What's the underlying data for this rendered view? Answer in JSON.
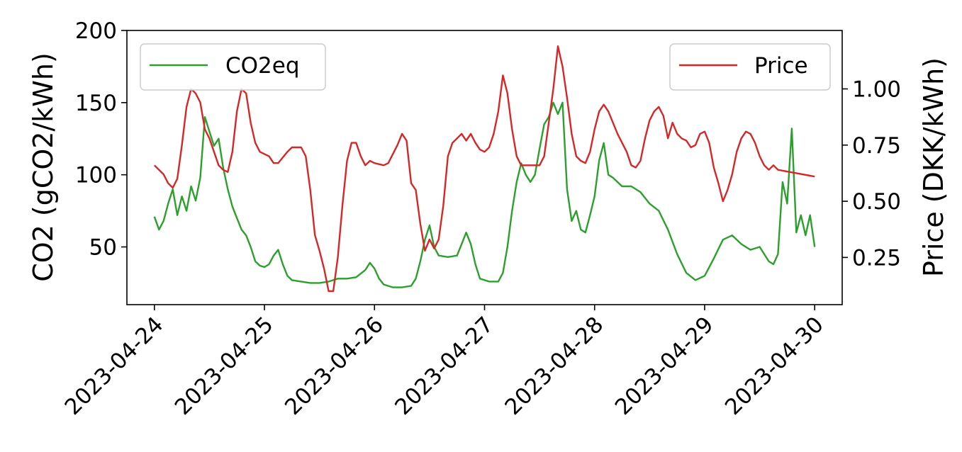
{
  "chart_data": {
    "type": "line",
    "title": "",
    "xlabel": "",
    "y_left_label": "CO2 (gCO2/kWh)",
    "y_right_label": "Price (DKK/kWh)",
    "x_ticks": [
      "2023-04-24",
      "2023-04-25",
      "2023-04-26",
      "2023-04-27",
      "2023-04-28",
      "2023-04-29",
      "2023-04-30"
    ],
    "x_range": [
      "2023-04-23T18:00",
      "2023-04-30T06:00"
    ],
    "y_left_ticks": [
      50,
      100,
      150,
      200
    ],
    "y_left_range": [
      10,
      200
    ],
    "y_right_ticks": [
      0.25,
      0.5,
      0.75,
      1.0
    ],
    "y_right_range": [
      0.04,
      1.26
    ],
    "grid": false,
    "legends": [
      {
        "position": "top-left",
        "entries": [
          {
            "label": "CO2eq",
            "color": "#2ca02c"
          }
        ]
      },
      {
        "position": "top-right",
        "entries": [
          {
            "label": "Price",
            "color": "#d62728"
          }
        ]
      }
    ],
    "series": [
      {
        "name": "CO2eq",
        "axis": "left",
        "color": "#2ca02c",
        "points": [
          [
            "2023-04-24T00:00",
            71
          ],
          [
            "2023-04-24T01:00",
            62
          ],
          [
            "2023-04-24T02:00",
            68
          ],
          [
            "2023-04-24T03:00",
            80
          ],
          [
            "2023-04-24T04:00",
            90
          ],
          [
            "2023-04-24T05:00",
            72
          ],
          [
            "2023-04-24T06:00",
            85
          ],
          [
            "2023-04-24T07:00",
            75
          ],
          [
            "2023-04-24T08:00",
            92
          ],
          [
            "2023-04-24T09:00",
            82
          ],
          [
            "2023-04-24T10:00",
            98
          ],
          [
            "2023-04-24T11:00",
            140
          ],
          [
            "2023-04-24T12:00",
            130
          ],
          [
            "2023-04-24T13:00",
            120
          ],
          [
            "2023-04-24T14:00",
            125
          ],
          [
            "2023-04-24T15:00",
            105
          ],
          [
            "2023-04-24T16:00",
            90
          ],
          [
            "2023-04-24T17:00",
            78
          ],
          [
            "2023-04-24T18:00",
            70
          ],
          [
            "2023-04-24T19:00",
            62
          ],
          [
            "2023-04-24T20:00",
            58
          ],
          [
            "2023-04-24T21:00",
            50
          ],
          [
            "2023-04-24T22:00",
            40
          ],
          [
            "2023-04-24T23:00",
            37
          ],
          [
            "2023-04-25T00:00",
            36
          ],
          [
            "2023-04-25T01:00",
            38
          ],
          [
            "2023-04-25T02:00",
            44
          ],
          [
            "2023-04-25T03:00",
            48
          ],
          [
            "2023-04-25T04:00",
            38
          ],
          [
            "2023-04-25T05:00",
            30
          ],
          [
            "2023-04-25T06:00",
            27
          ],
          [
            "2023-04-25T08:00",
            26
          ],
          [
            "2023-04-25T10:00",
            25
          ],
          [
            "2023-04-25T12:00",
            25
          ],
          [
            "2023-04-25T14:00",
            26
          ],
          [
            "2023-04-25T16:00",
            28
          ],
          [
            "2023-04-25T18:00",
            28
          ],
          [
            "2023-04-25T20:00",
            29
          ],
          [
            "2023-04-25T22:00",
            34
          ],
          [
            "2023-04-25T23:00",
            39
          ],
          [
            "2023-04-26T00:00",
            35
          ],
          [
            "2023-04-26T01:00",
            28
          ],
          [
            "2023-04-26T02:00",
            24
          ],
          [
            "2023-04-26T04:00",
            22
          ],
          [
            "2023-04-26T06:00",
            22
          ],
          [
            "2023-04-26T08:00",
            23
          ],
          [
            "2023-04-26T09:00",
            28
          ],
          [
            "2023-04-26T10:00",
            40
          ],
          [
            "2023-04-26T11:00",
            55
          ],
          [
            "2023-04-26T12:00",
            65
          ],
          [
            "2023-04-26T13:00",
            50
          ],
          [
            "2023-04-26T14:00",
            44
          ],
          [
            "2023-04-26T16:00",
            43
          ],
          [
            "2023-04-26T18:00",
            44
          ],
          [
            "2023-04-26T19:00",
            52
          ],
          [
            "2023-04-26T20:00",
            60
          ],
          [
            "2023-04-26T21:00",
            52
          ],
          [
            "2023-04-26T22:00",
            38
          ],
          [
            "2023-04-26T23:00",
            28
          ],
          [
            "2023-04-27T01:00",
            26
          ],
          [
            "2023-04-27T03:00",
            26
          ],
          [
            "2023-04-27T04:00",
            32
          ],
          [
            "2023-04-27T05:00",
            50
          ],
          [
            "2023-04-27T06:00",
            75
          ],
          [
            "2023-04-27T07:00",
            95
          ],
          [
            "2023-04-27T08:00",
            108
          ],
          [
            "2023-04-27T09:00",
            100
          ],
          [
            "2023-04-27T10:00",
            95
          ],
          [
            "2023-04-27T11:00",
            100
          ],
          [
            "2023-04-27T12:00",
            118
          ],
          [
            "2023-04-27T13:00",
            135
          ],
          [
            "2023-04-27T14:00",
            140
          ],
          [
            "2023-04-27T15:00",
            150
          ],
          [
            "2023-04-27T16:00",
            142
          ],
          [
            "2023-04-27T17:00",
            150
          ],
          [
            "2023-04-27T18:00",
            90
          ],
          [
            "2023-04-27T19:00",
            68
          ],
          [
            "2023-04-27T20:00",
            75
          ],
          [
            "2023-04-27T21:00",
            62
          ],
          [
            "2023-04-27T22:00",
            60
          ],
          [
            "2023-04-27T23:00",
            72
          ],
          [
            "2023-04-28T00:00",
            85
          ],
          [
            "2023-04-28T01:00",
            110
          ],
          [
            "2023-04-28T02:00",
            122
          ],
          [
            "2023-04-28T03:00",
            100
          ],
          [
            "2023-04-28T04:00",
            98
          ],
          [
            "2023-04-28T06:00",
            92
          ],
          [
            "2023-04-28T08:00",
            92
          ],
          [
            "2023-04-28T10:00",
            88
          ],
          [
            "2023-04-28T12:00",
            80
          ],
          [
            "2023-04-28T14:00",
            75
          ],
          [
            "2023-04-28T16:00",
            62
          ],
          [
            "2023-04-28T18:00",
            45
          ],
          [
            "2023-04-28T20:00",
            32
          ],
          [
            "2023-04-28T22:00",
            27
          ],
          [
            "2023-04-29T00:00",
            30
          ],
          [
            "2023-04-29T02:00",
            42
          ],
          [
            "2023-04-29T04:00",
            55
          ],
          [
            "2023-04-29T06:00",
            58
          ],
          [
            "2023-04-29T08:00",
            52
          ],
          [
            "2023-04-29T10:00",
            48
          ],
          [
            "2023-04-29T12:00",
            50
          ],
          [
            "2023-04-29T14:00",
            40
          ],
          [
            "2023-04-29T15:00",
            38
          ],
          [
            "2023-04-29T16:00",
            45
          ],
          [
            "2023-04-29T17:00",
            95
          ],
          [
            "2023-04-29T18:00",
            80
          ],
          [
            "2023-04-29T19:00",
            132
          ],
          [
            "2023-04-29T20:00",
            60
          ],
          [
            "2023-04-29T21:00",
            72
          ],
          [
            "2023-04-29T22:00",
            58
          ],
          [
            "2023-04-29T23:00",
            72
          ],
          [
            "2023-04-30T00:00",
            50
          ]
        ]
      },
      {
        "name": "Price",
        "axis": "right",
        "color": "#d62728",
        "points": [
          [
            "2023-04-24T00:00",
            0.66
          ],
          [
            "2023-04-24T02:00",
            0.62
          ],
          [
            "2023-04-24T03:00",
            0.58
          ],
          [
            "2023-04-24T04:00",
            0.56
          ],
          [
            "2023-04-24T05:00",
            0.6
          ],
          [
            "2023-04-24T06:00",
            0.75
          ],
          [
            "2023-04-24T07:00",
            0.92
          ],
          [
            "2023-04-24T08:00",
            1.0
          ],
          [
            "2023-04-24T09:00",
            0.98
          ],
          [
            "2023-04-24T10:00",
            0.94
          ],
          [
            "2023-04-24T11:00",
            0.82
          ],
          [
            "2023-04-24T12:00",
            0.78
          ],
          [
            "2023-04-24T13:00",
            0.72
          ],
          [
            "2023-04-24T14:00",
            0.66
          ],
          [
            "2023-04-24T15:00",
            0.64
          ],
          [
            "2023-04-24T16:00",
            0.63
          ],
          [
            "2023-04-24T17:00",
            0.72
          ],
          [
            "2023-04-24T18:00",
            0.9
          ],
          [
            "2023-04-24T19:00",
            1.0
          ],
          [
            "2023-04-24T20:00",
            0.98
          ],
          [
            "2023-04-24T21:00",
            0.85
          ],
          [
            "2023-04-24T22:00",
            0.76
          ],
          [
            "2023-04-24T23:00",
            0.72
          ],
          [
            "2023-04-25T01:00",
            0.7
          ],
          [
            "2023-04-25T02:00",
            0.67
          ],
          [
            "2023-04-25T03:00",
            0.67
          ],
          [
            "2023-04-25T05:00",
            0.72
          ],
          [
            "2023-04-25T06:00",
            0.74
          ],
          [
            "2023-04-25T08:00",
            0.74
          ],
          [
            "2023-04-25T09:00",
            0.7
          ],
          [
            "2023-04-25T10:00",
            0.55
          ],
          [
            "2023-04-25T11:00",
            0.35
          ],
          [
            "2023-04-25T12:00",
            0.28
          ],
          [
            "2023-04-25T13:00",
            0.2
          ],
          [
            "2023-04-25T14:00",
            0.1
          ],
          [
            "2023-04-25T15:00",
            0.1
          ],
          [
            "2023-04-25T16:00",
            0.25
          ],
          [
            "2023-04-25T17:00",
            0.48
          ],
          [
            "2023-04-25T18:00",
            0.68
          ],
          [
            "2023-04-25T19:00",
            0.76
          ],
          [
            "2023-04-25T20:00",
            0.76
          ],
          [
            "2023-04-25T21:00",
            0.7
          ],
          [
            "2023-04-25T22:00",
            0.66
          ],
          [
            "2023-04-25T23:00",
            0.68
          ],
          [
            "2023-04-26T00:00",
            0.67
          ],
          [
            "2023-04-26T02:00",
            0.66
          ],
          [
            "2023-04-26T03:00",
            0.67
          ],
          [
            "2023-04-26T05:00",
            0.75
          ],
          [
            "2023-04-26T06:00",
            0.8
          ],
          [
            "2023-04-26T07:00",
            0.77
          ],
          [
            "2023-04-26T08:00",
            0.58
          ],
          [
            "2023-04-26T09:00",
            0.55
          ],
          [
            "2023-04-26T10:00",
            0.4
          ],
          [
            "2023-04-26T11:00",
            0.28
          ],
          [
            "2023-04-26T12:00",
            0.33
          ],
          [
            "2023-04-26T13:00",
            0.29
          ],
          [
            "2023-04-26T14:00",
            0.33
          ],
          [
            "2023-04-26T15:00",
            0.48
          ],
          [
            "2023-04-26T16:00",
            0.7
          ],
          [
            "2023-04-26T17:00",
            0.76
          ],
          [
            "2023-04-26T18:00",
            0.78
          ],
          [
            "2023-04-26T19:00",
            0.8
          ],
          [
            "2023-04-26T20:00",
            0.77
          ],
          [
            "2023-04-26T21:00",
            0.8
          ],
          [
            "2023-04-26T22:00",
            0.76
          ],
          [
            "2023-04-26T23:00",
            0.73
          ],
          [
            "2023-04-27T00:00",
            0.72
          ],
          [
            "2023-04-27T01:00",
            0.74
          ],
          [
            "2023-04-27T02:00",
            0.8
          ],
          [
            "2023-04-27T03:00",
            0.9
          ],
          [
            "2023-04-27T04:00",
            1.06
          ],
          [
            "2023-04-27T05:00",
            0.98
          ],
          [
            "2023-04-27T06:00",
            0.82
          ],
          [
            "2023-04-27T07:00",
            0.7
          ],
          [
            "2023-04-27T08:00",
            0.66
          ],
          [
            "2023-04-27T10:00",
            0.66
          ],
          [
            "2023-04-27T12:00",
            0.66
          ],
          [
            "2023-04-27T13:00",
            0.7
          ],
          [
            "2023-04-27T14:00",
            0.85
          ],
          [
            "2023-04-27T15:00",
            1.0
          ],
          [
            "2023-04-27T16:00",
            1.19
          ],
          [
            "2023-04-27T17:00",
            1.1
          ],
          [
            "2023-04-27T18:00",
            0.96
          ],
          [
            "2023-04-27T19:00",
            0.8
          ],
          [
            "2023-04-27T20:00",
            0.7
          ],
          [
            "2023-04-27T21:00",
            0.68
          ],
          [
            "2023-04-27T22:00",
            0.67
          ],
          [
            "2023-04-27T23:00",
            0.72
          ],
          [
            "2023-04-28T00:00",
            0.82
          ],
          [
            "2023-04-28T01:00",
            0.9
          ],
          [
            "2023-04-28T02:00",
            0.93
          ],
          [
            "2023-04-28T03:00",
            0.9
          ],
          [
            "2023-04-28T04:00",
            0.85
          ],
          [
            "2023-04-28T05:00",
            0.8
          ],
          [
            "2023-04-28T06:00",
            0.76
          ],
          [
            "2023-04-28T07:00",
            0.72
          ],
          [
            "2023-04-28T08:00",
            0.66
          ],
          [
            "2023-04-28T09:00",
            0.65
          ],
          [
            "2023-04-28T10:00",
            0.68
          ],
          [
            "2023-04-28T11:00",
            0.78
          ],
          [
            "2023-04-28T12:00",
            0.86
          ],
          [
            "2023-04-28T13:00",
            0.9
          ],
          [
            "2023-04-28T14:00",
            0.92
          ],
          [
            "2023-04-28T15:00",
            0.88
          ],
          [
            "2023-04-28T16:00",
            0.78
          ],
          [
            "2023-04-28T17:00",
            0.85
          ],
          [
            "2023-04-28T18:00",
            0.8
          ],
          [
            "2023-04-28T19:00",
            0.78
          ],
          [
            "2023-04-28T20:00",
            0.77
          ],
          [
            "2023-04-28T21:00",
            0.74
          ],
          [
            "2023-04-28T22:00",
            0.75
          ],
          [
            "2023-04-28T23:00",
            0.8
          ],
          [
            "2023-04-29T00:00",
            0.81
          ],
          [
            "2023-04-29T01:00",
            0.76
          ],
          [
            "2023-04-29T02:00",
            0.65
          ],
          [
            "2023-04-29T03:00",
            0.58
          ],
          [
            "2023-04-29T04:00",
            0.5
          ],
          [
            "2023-04-29T05:00",
            0.55
          ],
          [
            "2023-04-29T06:00",
            0.62
          ],
          [
            "2023-04-29T07:00",
            0.72
          ],
          [
            "2023-04-29T08:00",
            0.78
          ],
          [
            "2023-04-29T09:00",
            0.81
          ],
          [
            "2023-04-29T10:00",
            0.8
          ],
          [
            "2023-04-29T11:00",
            0.76
          ],
          [
            "2023-04-29T12:00",
            0.7
          ],
          [
            "2023-04-29T13:00",
            0.66
          ],
          [
            "2023-04-29T14:00",
            0.64
          ],
          [
            "2023-04-29T15:00",
            0.66
          ],
          [
            "2023-04-29T16:00",
            0.64
          ],
          [
            "2023-04-30T00:00",
            0.61
          ]
        ]
      }
    ]
  }
}
